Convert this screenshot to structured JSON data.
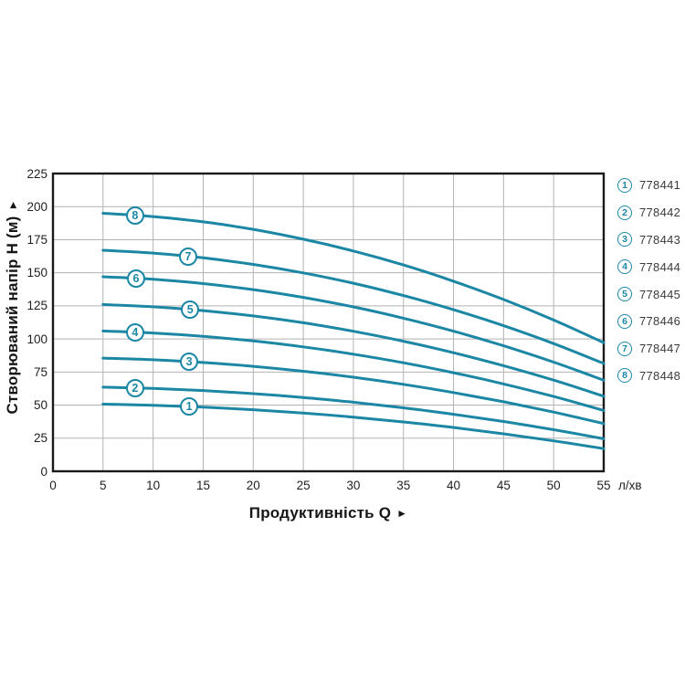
{
  "chart": {
    "x_title": "Продуктивність  Q",
    "x_title_arrow": "►",
    "y_title": "Створюваний напір H (м)",
    "y_title_arrow": "►",
    "x_unit": "л/хв"
  },
  "colors": {
    "curve": "#1b87a5",
    "grid": "#b3b3b3",
    "border": "#1a1a1a",
    "tick_text": "#1f1f1f",
    "legend_text": "#3a3a3a"
  },
  "chart_data": {
    "type": "line",
    "title": "",
    "xlabel": "Продуктивність Q (л/хв)",
    "ylabel": "Створюваний напір H (м)",
    "xlim": [
      0,
      55
    ],
    "ylim": [
      0,
      225
    ],
    "xticks": [
      0,
      5,
      10,
      15,
      20,
      25,
      30,
      35,
      40,
      45,
      50,
      55
    ],
    "yticks": [
      0,
      25,
      50,
      75,
      100,
      125,
      150,
      175,
      200,
      225
    ],
    "grid": true,
    "legend_position": "right-outside",
    "x": [
      5,
      10,
      15,
      20,
      25,
      30,
      35,
      40,
      45,
      50,
      55
    ],
    "series": [
      {
        "label": "1",
        "code": "778441",
        "label_q": 13.6,
        "values": [
          50.7,
          49.9,
          48.5,
          46.5,
          44.0,
          40.9,
          37.3,
          33.1,
          28.3,
          23.0,
          17.1
        ]
      },
      {
        "label": "2",
        "code": "778442",
        "label_q": 8.2,
        "values": [
          63.6,
          62.6,
          61.0,
          58.7,
          55.8,
          52.2,
          48.0,
          43.1,
          37.6,
          31.4,
          24.6
        ]
      },
      {
        "label": "3",
        "code": "778443",
        "label_q": 13.6,
        "values": [
          85.5,
          84.3,
          82.2,
          79.3,
          75.6,
          71.1,
          65.7,
          59.5,
          52.5,
          44.7,
          36.0
        ]
      },
      {
        "label": "4",
        "code": "778444",
        "label_q": 8.2,
        "values": [
          106.0,
          104.5,
          102.0,
          98.5,
          94.0,
          88.5,
          82.0,
          74.5,
          66.0,
          56.5,
          46.0
        ]
      },
      {
        "label": "5",
        "code": "778445",
        "label_q": 13.7,
        "values": [
          126.0,
          124.3,
          121.4,
          117.4,
          112.2,
          105.8,
          98.3,
          89.6,
          79.8,
          68.9,
          56.7
        ]
      },
      {
        "label": "6",
        "code": "778446",
        "label_q": 8.3,
        "values": [
          147.0,
          145.1,
          141.8,
          137.3,
          131.4,
          124.2,
          115.7,
          105.9,
          94.8,
          82.5,
          68.8
        ]
      },
      {
        "label": "7",
        "code": "778447",
        "label_q": 13.5,
        "values": [
          167.0,
          164.9,
          161.3,
          156.3,
          149.9,
          142.1,
          132.8,
          122.1,
          110.0,
          96.5,
          81.5
        ]
      },
      {
        "label": "8",
        "code": "778448",
        "label_q": 8.2,
        "values": [
          195.0,
          192.5,
          188.5,
          182.8,
          175.4,
          166.5,
          155.9,
          143.6,
          129.8,
          114.3,
          97.2
        ]
      }
    ]
  }
}
